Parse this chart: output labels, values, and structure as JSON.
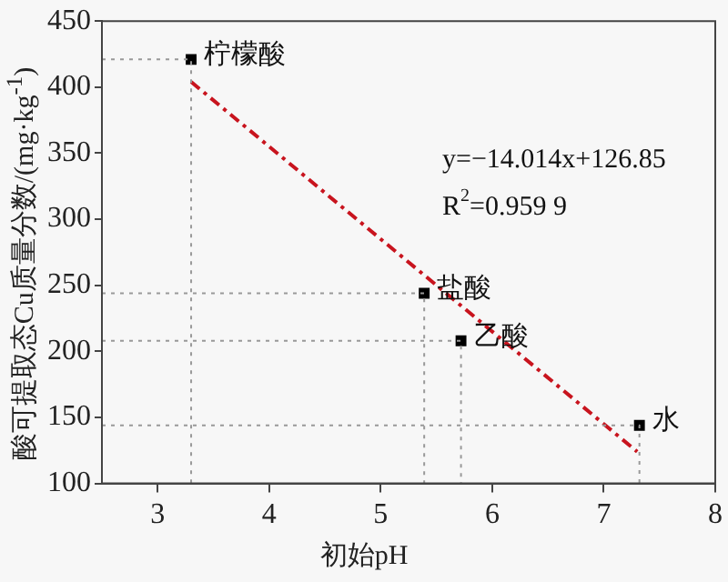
{
  "chart_data": {
    "type": "scatter",
    "xlabel": "初始pH",
    "ylabel": "酸可提取态Cu质量分数/(mg·kg$^{-1}$)",
    "xlim": [
      2.5,
      8
    ],
    "xticks": [
      3,
      4,
      5,
      6,
      7,
      8
    ],
    "ylim": [
      100,
      450
    ],
    "yticks": [
      100,
      150,
      200,
      250,
      300,
      350,
      400,
      450
    ],
    "grid": false,
    "legend": false,
    "series": [
      {
        "type": "line",
        "color": "#999999",
        "line_style": "dotted",
        "marker": "none",
        "x": [
          2.5,
          3.3,
          3.3
        ],
        "values": [
          421,
          421,
          100
        ]
      },
      {
        "type": "line",
        "color": "#999999",
        "line_style": "dotted",
        "marker": "none",
        "x": [
          2.5,
          5.39,
          5.39
        ],
        "values": [
          244,
          244,
          100
        ]
      },
      {
        "type": "line",
        "color": "#999999",
        "line_style": "dotted",
        "marker": "none",
        "x": [
          2.5,
          5.72,
          5.72
        ],
        "values": [
          208,
          208,
          100
        ]
      },
      {
        "type": "line",
        "color": "#999999",
        "line_style": "dotted",
        "marker": "none",
        "x": [
          2.5,
          7.32,
          7.32
        ],
        "values": [
          144,
          144,
          100
        ]
      },
      {
        "type": "line",
        "color": "#c8141e",
        "line_style": "dashed",
        "marker": "none",
        "x": [
          3.3,
          7.3
        ],
        "values": [
          404,
          124
        ]
      },
      {
        "marker": "square",
        "color": "#000000",
        "x": [
          3.3,
          5.39,
          5.72,
          7.32
        ],
        "values": [
          421,
          244,
          208,
          144
        ]
      }
    ],
    "annotations": [
      {
        "text": "柠檬酸",
        "x": 3.3,
        "y": 421
      },
      {
        "text": "盐酸",
        "x": 5.39,
        "y": 244
      },
      {
        "text": "乙酸",
        "x": 5.72,
        "y": 208
      },
      {
        "text": "水",
        "x": 7.32,
        "y": 144
      },
      "y=−14.014x+126.85",
      "R$^{2}$=0.959 9"
    ]
  }
}
